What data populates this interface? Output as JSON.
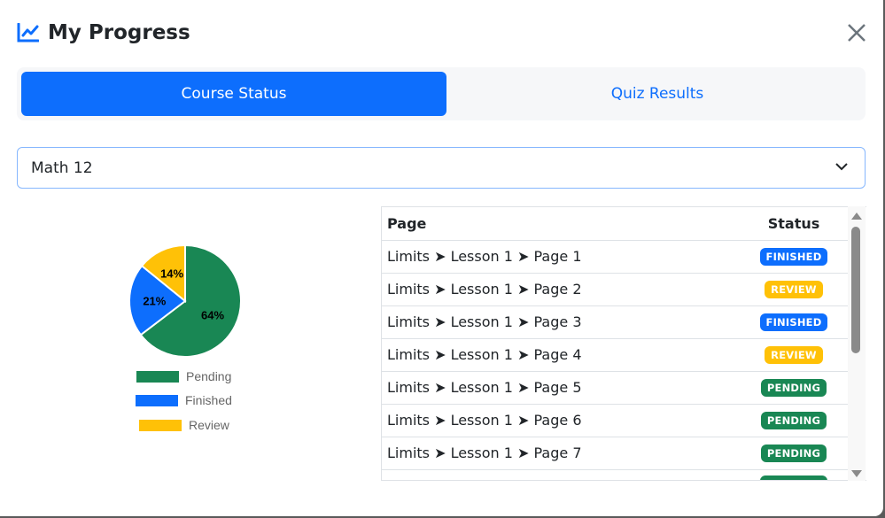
{
  "title": "My Progress",
  "tabs": [
    {
      "label": "Course Status",
      "active": true
    },
    {
      "label": "Quiz Results",
      "active": false
    }
  ],
  "course_select": {
    "value": "Math 12"
  },
  "colors": {
    "accent": "#0d6efd",
    "pending": "#198754",
    "finished": "#0d6efd",
    "review": "#ffc107"
  },
  "chart_data": {
    "type": "pie",
    "categories": [
      "Pending",
      "Finished",
      "Review"
    ],
    "values": [
      64,
      21,
      14
    ],
    "labels": [
      "64%",
      "21%",
      "14%"
    ],
    "colors": [
      "#198754",
      "#0d6efd",
      "#ffc107"
    ],
    "legend": "bottom"
  },
  "table": {
    "headers": {
      "page": "Page",
      "status": "Status"
    },
    "rows": [
      {
        "page": "Limits ➤ Lesson 1 ➤ Page 1",
        "status": "FINISHED"
      },
      {
        "page": "Limits ➤ Lesson 1 ➤ Page 2",
        "status": "REVIEW"
      },
      {
        "page": "Limits ➤ Lesson 1 ➤ Page 3",
        "status": "FINISHED"
      },
      {
        "page": "Limits ➤ Lesson 1 ➤ Page 4",
        "status": "REVIEW"
      },
      {
        "page": "Limits ➤ Lesson 1 ➤ Page 5",
        "status": "PENDING"
      },
      {
        "page": "Limits ➤ Lesson 1 ➤ Page 6",
        "status": "PENDING"
      },
      {
        "page": "Limits ➤ Lesson 1 ➤ Page 7",
        "status": "PENDING"
      }
    ]
  }
}
